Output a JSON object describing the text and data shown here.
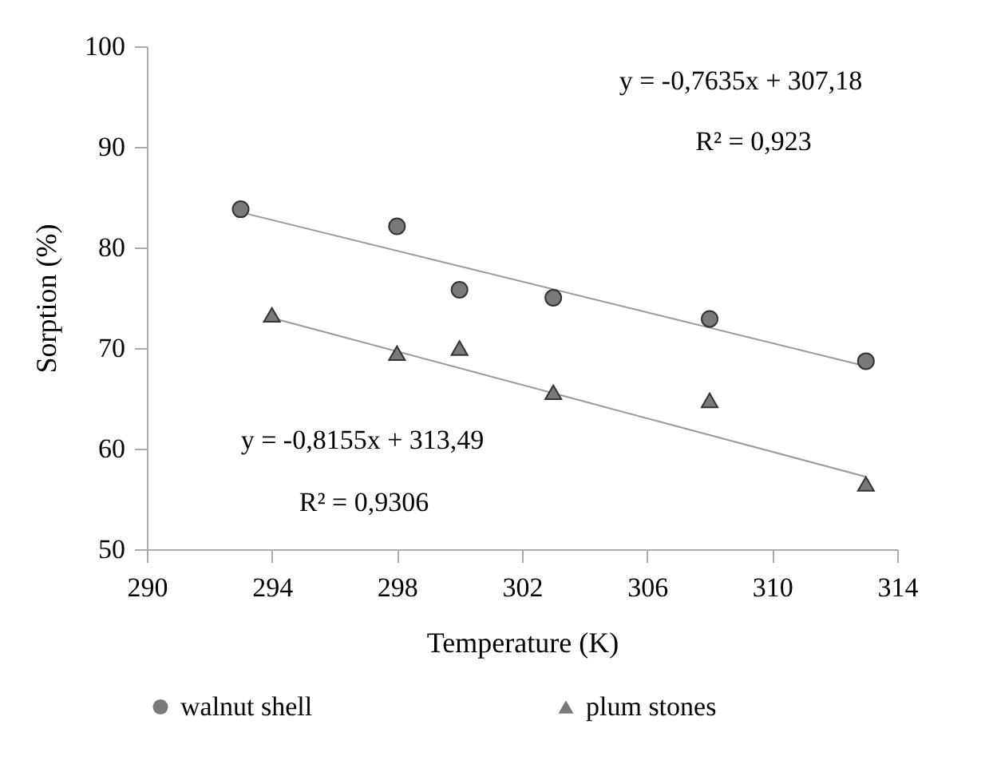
{
  "chart_data": {
    "type": "scatter",
    "xlabel": "Temperature (K)",
    "ylabel": "Sorption (%)",
    "xlim": [
      290,
      314
    ],
    "xticks": [
      290,
      294,
      298,
      302,
      306,
      310,
      314
    ],
    "ylim": [
      50,
      100
    ],
    "yticks": [
      50,
      60,
      70,
      80,
      90,
      100
    ],
    "grid": false,
    "legend": "bottom",
    "series": [
      {
        "name": "walnut shell",
        "marker": "circle",
        "color": "#7a7a7a",
        "x": [
          293,
          298,
          300,
          303,
          308,
          313
        ],
        "values": [
          83.8,
          82.1,
          75.8,
          75.0,
          72.9,
          68.7
        ]
      },
      {
        "name": "plum stones",
        "marker": "triangle",
        "color": "#7a7a7a",
        "x": [
          294,
          298,
          300,
          303,
          308,
          313
        ],
        "values": [
          73.3,
          69.5,
          70.0,
          65.6,
          64.8,
          56.5
        ]
      },
      {
        "type": "line",
        "color": "#999999",
        "x": [
          293,
          313
        ],
        "values": [
          83.5,
          68.2
        ]
      },
      {
        "type": "line",
        "color": "#999999",
        "x": [
          294,
          313
        ],
        "values": [
          73.0,
          57.2
        ]
      }
    ],
    "annotations": [
      "y = -0,7635x + 307,18",
      "R² = 0,923",
      "y = -0,8155x + 313,49",
      "R² = 0,9306"
    ]
  }
}
